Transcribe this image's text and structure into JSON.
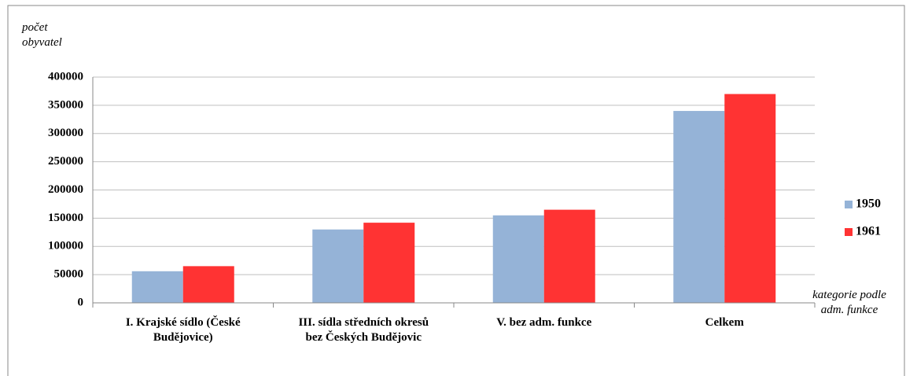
{
  "chart_data": {
    "type": "bar",
    "y_label": "počet obyvatel",
    "x_label": "kategorie podle adm. funkce",
    "categories": [
      "I. Krajské sídlo (České Budějovice)",
      "III. sídla středních okresů bez Českých Budějovic",
      "V. bez adm. funkce",
      "Celkem"
    ],
    "series": [
      {
        "name": "1950",
        "color": "#95b3d7",
        "values": [
          56000,
          130000,
          155000,
          340000
        ]
      },
      {
        "name": "1961",
        "color": "#ff3333",
        "values": [
          65000,
          142000,
          165000,
          370000
        ]
      }
    ],
    "ylim": [
      0,
      400000
    ],
    "yticks": [
      0,
      50000,
      100000,
      150000,
      200000,
      250000,
      300000,
      350000,
      400000
    ],
    "grid": true,
    "legend": "right"
  }
}
